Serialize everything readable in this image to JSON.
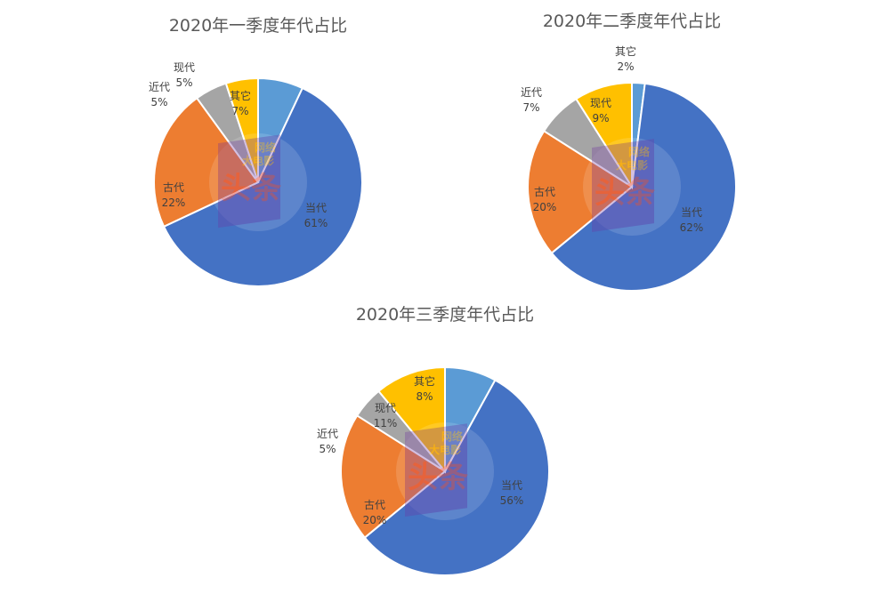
{
  "chart_data": [
    {
      "type": "pie",
      "title": "2020年一季度年代占比",
      "slices": [
        {
          "label": "其它",
          "value": 7,
          "display": "7%",
          "color": "#5B9BD5"
        },
        {
          "label": "当代",
          "value": 61,
          "display": "61%",
          "color": "#4472C4"
        },
        {
          "label": "古代",
          "value": 22,
          "display": "22%",
          "color": "#ED7D31"
        },
        {
          "label": "近代",
          "value": 5,
          "display": "5%",
          "color": "#A5A5A5"
        },
        {
          "label": "现代",
          "value": 5,
          "display": "5%",
          "color": "#FFC000"
        }
      ]
    },
    {
      "type": "pie",
      "title": "2020年二季度年代占比",
      "slices": [
        {
          "label": "其它",
          "value": 2,
          "display": "2%",
          "color": "#5B9BD5"
        },
        {
          "label": "当代",
          "value": 62,
          "display": "62%",
          "color": "#4472C4"
        },
        {
          "label": "古代",
          "value": 20,
          "display": "20%",
          "color": "#ED7D31"
        },
        {
          "label": "近代",
          "value": 7,
          "display": "7%",
          "color": "#A5A5A5"
        },
        {
          "label": "现代",
          "value": 9,
          "display": "9%",
          "color": "#FFC000"
        }
      ]
    },
    {
      "type": "pie",
      "title": "2020年三季度年代占比",
      "slices": [
        {
          "label": "其它",
          "value": 8,
          "display": "8%",
          "color": "#5B9BD5"
        },
        {
          "label": "当代",
          "value": 56,
          "display": "56%",
          "color": "#4472C4"
        },
        {
          "label": "古代",
          "value": 20,
          "display": "20%",
          "color": "#ED7D31"
        },
        {
          "label": "近代",
          "value": 5,
          "display": "5%",
          "color": "#A5A5A5"
        },
        {
          "label": "现代",
          "value": 11,
          "display": "11%",
          "color": "#FFC000"
        }
      ]
    }
  ],
  "watermark": {
    "line1": "网络",
    "line2": "大电影",
    "brand": "头条"
  }
}
